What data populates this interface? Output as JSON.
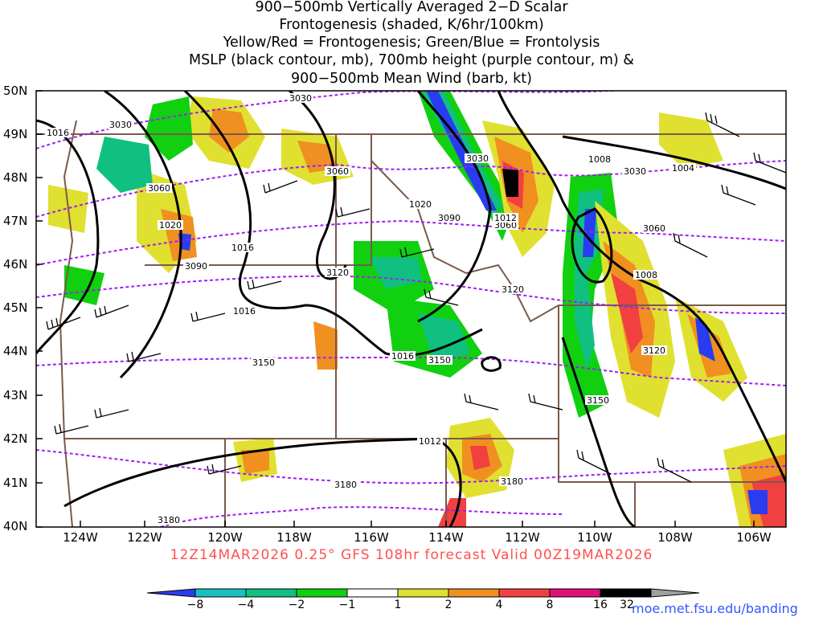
{
  "title_lines": [
    "900−500mb Vertically Averaged 2−D Scalar",
    "Frontogenesis (shaded, K/6hr/100km)",
    "Yellow/Red = Frontogenesis;  Green/Blue = Frontolysis",
    "MSLP (black contour, mb), 700mb height (purple contour, m) &",
    "900−500mb Mean Wind (barb, kt)"
  ],
  "lat_labels": [
    "50N",
    "49N",
    "48N",
    "47N",
    "46N",
    "45N",
    "44N",
    "43N",
    "42N",
    "41N",
    "40N"
  ],
  "lon_labels": [
    "124W",
    "122W",
    "120W",
    "118W",
    "116W",
    "114W",
    "112W",
    "110W",
    "108W",
    "106W"
  ],
  "footer": "12Z14MAR2026 0.25° GFS 108hr forecast Valid 00Z19MAR2026",
  "colorbar": {
    "labels": [
      "−8",
      "−4",
      "−2",
      "−1",
      "1",
      "2",
      "4",
      "8",
      "16",
      "32"
    ],
    "colors": [
      "#2a3cf0",
      "#1ac0c0",
      "#10c080",
      "#10d010",
      "#ffffff",
      "#e0e030",
      "#f09020",
      "#f04040",
      "#e0107a",
      "#000000",
      "#a0a0a0"
    ]
  },
  "contour_labels": {
    "mslp": [
      "1016",
      "1020",
      "1016",
      "1016",
      "1016",
      "1020",
      "1012",
      "1008",
      "1004",
      "1008",
      "1012"
    ],
    "height_700mb": [
      "3030",
      "3030",
      "3060",
      "3060",
      "3090",
      "3120",
      "3150",
      "3030",
      "3090",
      "3060",
      "3030",
      "3060",
      "3120",
      "3120",
      "3150",
      "3150",
      "3180",
      "3180",
      "3180"
    ]
  },
  "credit": "moe.met.fsu.edu/banding"
}
